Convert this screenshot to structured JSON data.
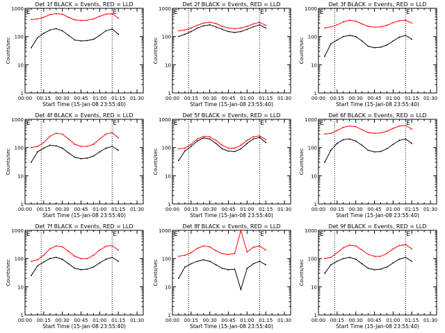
{
  "figure": {
    "xlabel": "Start Time (15-Jan-08 23:55:40)",
    "ylabel": "Counts/sec",
    "x_ticks": [
      "00:00",
      "00:15",
      "00:30",
      "00:45",
      "01:00",
      "01:15",
      "01:30"
    ],
    "y_ticks": [
      "1",
      "10",
      "100",
      "1000"
    ],
    "colors": {
      "events": "#000000",
      "lld": "#ff0000",
      "axes": "#000000"
    },
    "eclipse_lines_x": [
      "00:13",
      "01:10"
    ]
  },
  "chart_data": [
    {
      "type": "line",
      "title": "Det 1f BLACK = Events, RED = LLD",
      "corner_labels": [
        "E",
        "E"
      ],
      "x": [
        "00:05",
        "00:10",
        "00:15",
        "00:20",
        "00:25",
        "00:30",
        "00:35",
        "00:40",
        "00:45",
        "00:50",
        "00:55",
        "01:00",
        "01:05",
        "01:10",
        "01:15"
      ],
      "series": [
        {
          "values": [
            40,
            90,
            130,
            170,
            190,
            160,
            110,
            75,
            70,
            72,
            80,
            110,
            160,
            185,
            120
          ]
        },
        {
          "values": [
            400,
            420,
            480,
            600,
            650,
            620,
            480,
            390,
            370,
            380,
            420,
            520,
            620,
            640,
            450
          ]
        }
      ],
      "xlim": [
        "00:00",
        "01:35"
      ],
      "ylim": [
        1,
        1000
      ],
      "yscale": "log",
      "grid": false
    },
    {
      "type": "line",
      "title": "Det 2f BLACK = Events, RED = LLD",
      "corner_labels": [
        "E",
        "E"
      ],
      "x": [
        "00:05",
        "00:10",
        "00:15",
        "00:20",
        "00:25",
        "00:30",
        "00:35",
        "00:40",
        "00:45",
        "00:50",
        "00:55",
        "01:00",
        "01:05",
        "01:10",
        "01:15"
      ],
      "series": [
        {
          "values": [
            100,
            120,
            150,
            200,
            240,
            260,
            220,
            180,
            150,
            140,
            150,
            180,
            220,
            260,
            200
          ]
        },
        {
          "values": [
            160,
            170,
            200,
            250,
            300,
            320,
            290,
            230,
            200,
            190,
            200,
            230,
            280,
            320,
            250
          ]
        }
      ],
      "xlim": [
        "00:00",
        "01:35"
      ],
      "ylim": [
        1,
        1000
      ],
      "yscale": "log",
      "grid": false
    },
    {
      "type": "line",
      "title": "Det 3f BLACK = Events, RED = LLD",
      "corner_labels": [
        "E",
        "E"
      ],
      "x": [
        "00:05",
        "00:10",
        "00:15",
        "00:20",
        "00:25",
        "00:30",
        "00:35",
        "00:40",
        "00:45",
        "00:50",
        "00:55",
        "01:00",
        "01:05",
        "01:10",
        "01:15"
      ],
      "series": [
        {
          "values": [
            20,
            55,
            75,
            100,
            110,
            100,
            70,
            45,
            40,
            42,
            50,
            70,
            95,
            110,
            80
          ]
        },
        {
          "values": [
            200,
            220,
            260,
            330,
            380,
            350,
            280,
            230,
            215,
            220,
            250,
            310,
            360,
            380,
            300
          ]
        }
      ],
      "xlim": [
        "00:00",
        "01:35"
      ],
      "ylim": [
        1,
        1000
      ],
      "yscale": "log",
      "grid": false
    },
    {
      "type": "line",
      "title": "Det 4f BLACK = Events, RED = LLD",
      "corner_labels": [
        "E",
        "E"
      ],
      "x": [
        "00:05",
        "00:10",
        "00:15",
        "00:20",
        "00:25",
        "00:30",
        "00:35",
        "00:40",
        "00:45",
        "00:50",
        "00:55",
        "01:00",
        "01:05",
        "01:10",
        "01:15"
      ],
      "series": [
        {
          "values": [
            30,
            70,
            95,
            120,
            115,
            95,
            65,
            45,
            40,
            42,
            50,
            70,
            95,
            110,
            80
          ]
        },
        {
          "values": [
            100,
            110,
            150,
            250,
            320,
            300,
            200,
            130,
            110,
            110,
            130,
            200,
            300,
            340,
            220
          ]
        }
      ],
      "xlim": [
        "00:00",
        "01:35"
      ],
      "ylim": [
        1,
        1000
      ],
      "yscale": "log",
      "grid": false
    },
    {
      "type": "line",
      "title": "Det 5f BLACK = Events, RED = LLD",
      "corner_labels": [
        "E",
        "E"
      ],
      "x": [
        "00:05",
        "00:10",
        "00:15",
        "00:20",
        "00:25",
        "00:30",
        "00:35",
        "00:40",
        "00:45",
        "00:50",
        "00:55",
        "01:00",
        "01:05",
        "01:10",
        "01:15"
      ],
      "series": [
        {
          "values": [
            35,
            75,
            110,
            170,
            220,
            200,
            140,
            90,
            75,
            72,
            90,
            140,
            200,
            230,
            150
          ]
        },
        {
          "values": [
            90,
            95,
            130,
            200,
            250,
            240,
            180,
            120,
            95,
            95,
            120,
            180,
            240,
            260,
            190
          ]
        }
      ],
      "xlim": [
        "00:00",
        "01:35"
      ],
      "ylim": [
        1,
        1000
      ],
      "yscale": "log",
      "grid": false
    },
    {
      "type": "line",
      "title": "Det 6f BLACK = Events, RED = LLD",
      "corner_labels": [
        "E",
        "E"
      ],
      "x": [
        "00:05",
        "00:10",
        "00:15",
        "00:20",
        "00:25",
        "00:30",
        "00:35",
        "00:40",
        "00:45",
        "00:50",
        "00:55",
        "01:00",
        "01:05",
        "01:10",
        "01:15"
      ],
      "series": [
        {
          "values": [
            30,
            80,
            140,
            190,
            200,
            170,
            120,
            80,
            70,
            72,
            90,
            130,
            180,
            200,
            140
          ]
        },
        {
          "values": [
            300,
            320,
            400,
            520,
            580,
            550,
            430,
            340,
            320,
            330,
            380,
            480,
            580,
            600,
            450
          ]
        }
      ],
      "xlim": [
        "00:00",
        "01:35"
      ],
      "ylim": [
        1,
        1000
      ],
      "yscale": "log",
      "grid": false
    },
    {
      "type": "line",
      "title": "Det 7f BLACK = Events, RED = LLD",
      "corner_labels": [
        "E",
        "E"
      ],
      "x": [
        "00:05",
        "00:10",
        "00:15",
        "00:20",
        "00:25",
        "00:30",
        "00:35",
        "00:40",
        "00:45",
        "00:50",
        "00:55",
        "01:00",
        "01:05",
        "01:10",
        "01:15"
      ],
      "series": [
        {
          "values": [
            25,
            55,
            75,
            100,
            110,
            95,
            65,
            45,
            40,
            42,
            50,
            70,
            95,
            110,
            80
          ]
        },
        {
          "values": [
            80,
            90,
            130,
            220,
            280,
            260,
            180,
            120,
            100,
            100,
            130,
            200,
            270,
            290,
            200
          ]
        }
      ],
      "xlim": [
        "00:00",
        "01:35"
      ],
      "ylim": [
        1,
        1000
      ],
      "yscale": "log",
      "grid": false
    },
    {
      "type": "line",
      "title": "Det 8f BLACK = Events, RED = LLD",
      "corner_labels": [
        "E",
        "E"
      ],
      "x": [
        "00:05",
        "00:10",
        "00:15",
        "00:20",
        "00:25",
        "00:30",
        "00:35",
        "00:40",
        "00:45",
        "00:50",
        "00:55",
        "01:00",
        "01:05",
        "01:10",
        "01:15"
      ],
      "series": [
        {
          "values": [
            20,
            50,
            65,
            80,
            90,
            80,
            60,
            45,
            40,
            42,
            8,
            45,
            65,
            80,
            60
          ]
        },
        {
          "values": [
            120,
            130,
            160,
            230,
            280,
            260,
            190,
            150,
            140,
            150,
            1000,
            170,
            250,
            280,
            200
          ]
        }
      ],
      "xlim": [
        "00:00",
        "01:35"
      ],
      "ylim": [
        1,
        1000
      ],
      "yscale": "log",
      "grid": false
    },
    {
      "type": "line",
      "title": "Det 9f BLACK = Events, RED = LLD",
      "corner_labels": [
        "E",
        "E"
      ],
      "x": [
        "00:05",
        "00:10",
        "00:15",
        "00:20",
        "00:25",
        "00:30",
        "00:35",
        "00:40",
        "00:45",
        "00:50",
        "00:55",
        "01:00",
        "01:05",
        "01:10",
        "01:15"
      ],
      "series": [
        {
          "values": [
            30,
            60,
            80,
            100,
            110,
            95,
            65,
            45,
            40,
            42,
            50,
            70,
            95,
            110,
            80
          ]
        },
        {
          "values": [
            100,
            110,
            160,
            240,
            300,
            280,
            200,
            140,
            120,
            120,
            150,
            220,
            290,
            310,
            220
          ]
        }
      ],
      "xlim": [
        "00:00",
        "01:35"
      ],
      "ylim": [
        1,
        1000
      ],
      "yscale": "log",
      "grid": false
    }
  ]
}
